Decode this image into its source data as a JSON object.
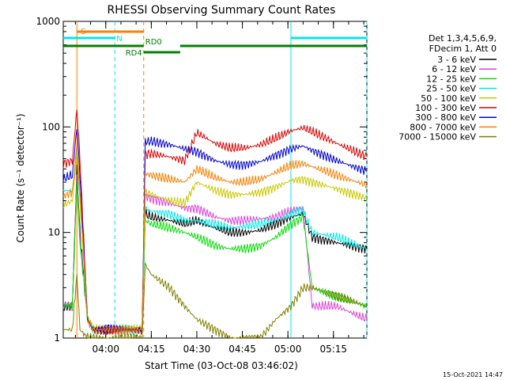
{
  "chart_data": {
    "type": "line",
    "title": "RHESSI Observing Summary Count Rates",
    "xlabel": "Start Time (03-Oct-08 03:46:02)",
    "ylabel": "Count Rate (s⁻¹ detector⁻¹)",
    "footer": "15-Oct-2021 14:47",
    "y_scale": "log",
    "ylim": [
      1,
      1000
    ],
    "xlim_minutes": [
      0,
      100
    ],
    "x_start": "03:46:02",
    "x_ticks": [
      {
        "label": "04:00",
        "minute": 14
      },
      {
        "label": "04:15",
        "minute": 29
      },
      {
        "label": "04:30",
        "minute": 44
      },
      {
        "label": "04:45",
        "minute": 59
      },
      {
        "label": "05:00",
        "minute": 74
      },
      {
        "label": "05:15",
        "minute": 89
      }
    ],
    "y_ticks": [
      {
        "label": "1",
        "value": 1
      },
      {
        "label": "10",
        "value": 10
      },
      {
        "label": "100",
        "value": 100
      },
      {
        "label": "1000",
        "value": 1000
      }
    ],
    "legend_header": [
      "Det 1,3,4,5,6,9,",
      "FDecim 1, Att 0"
    ],
    "legend_position": "right",
    "series": [
      {
        "name": "3 - 6 keV",
        "color": "#000000",
        "points": [
          [
            0,
            2
          ],
          [
            3,
            2
          ],
          [
            4.5,
            40
          ],
          [
            5.5,
            10
          ],
          [
            8,
            1.5
          ],
          [
            10,
            1.2
          ],
          [
            26,
            1.2
          ],
          [
            27,
            15
          ],
          [
            29,
            14
          ],
          [
            35,
            13
          ],
          [
            40,
            12
          ],
          [
            44,
            13
          ],
          [
            50,
            11
          ],
          [
            55,
            10
          ],
          [
            60,
            10
          ],
          [
            65,
            10.5
          ],
          [
            70,
            12
          ],
          [
            75,
            14
          ],
          [
            79,
            15
          ],
          [
            82,
            9
          ],
          [
            90,
            8
          ],
          [
            100,
            7
          ]
        ]
      },
      {
        "name": "6 - 12 keV",
        "color": "#e040e0",
        "points": [
          [
            0,
            2
          ],
          [
            3,
            2
          ],
          [
            4.5,
            35
          ],
          [
            5.5,
            9
          ],
          [
            8,
            1.5
          ],
          [
            10,
            1.2
          ],
          [
            26,
            1.2
          ],
          [
            27,
            22
          ],
          [
            29,
            21
          ],
          [
            35,
            19
          ],
          [
            40,
            17
          ],
          [
            44,
            17
          ],
          [
            50,
            14
          ],
          [
            55,
            13
          ],
          [
            60,
            13
          ],
          [
            65,
            13.5
          ],
          [
            70,
            14
          ],
          [
            75,
            16
          ],
          [
            79,
            17
          ],
          [
            82,
            2
          ],
          [
            90,
            2
          ],
          [
            100,
            1.5
          ]
        ]
      },
      {
        "name": "12 - 25 keV",
        "color": "#00e000",
        "points": [
          [
            0,
            2
          ],
          [
            3,
            2
          ],
          [
            4.5,
            30
          ],
          [
            5.5,
            8
          ],
          [
            8,
            1.5
          ],
          [
            10,
            1.2
          ],
          [
            26,
            1.2
          ],
          [
            27,
            13
          ],
          [
            29,
            12
          ],
          [
            35,
            11
          ],
          [
            40,
            10
          ],
          [
            44,
            9
          ],
          [
            50,
            7.5
          ],
          [
            55,
            7
          ],
          [
            60,
            7
          ],
          [
            65,
            7.5
          ],
          [
            70,
            9
          ],
          [
            75,
            12
          ],
          [
            79,
            14
          ],
          [
            82,
            3
          ],
          [
            90,
            2.5
          ],
          [
            100,
            2
          ]
        ]
      },
      {
        "name": "25 - 50 keV",
        "color": "#00e8e8",
        "points": [
          [
            0,
            25
          ],
          [
            3,
            25
          ],
          [
            4.5,
            60
          ],
          [
            5.5,
            20
          ],
          [
            8,
            1.5
          ],
          [
            10,
            1.2
          ],
          [
            26,
            1.2
          ],
          [
            27,
            17
          ],
          [
            29,
            16
          ],
          [
            35,
            15
          ],
          [
            40,
            13
          ],
          [
            44,
            13
          ],
          [
            50,
            12
          ],
          [
            55,
            11
          ],
          [
            60,
            11.5
          ],
          [
            65,
            12
          ],
          [
            70,
            13
          ],
          [
            75,
            15
          ],
          [
            79,
            16
          ],
          [
            82,
            10
          ],
          [
            90,
            9
          ],
          [
            100,
            7
          ]
        ]
      },
      {
        "name": "50 - 100 keV",
        "color": "#c8c800",
        "points": [
          [
            0,
            18
          ],
          [
            3,
            20
          ],
          [
            4.5,
            55
          ],
          [
            5.5,
            20
          ],
          [
            8,
            1.5
          ],
          [
            10,
            1.2
          ],
          [
            26,
            1.2
          ],
          [
            27,
            24
          ],
          [
            29,
            23
          ],
          [
            35,
            20
          ],
          [
            40,
            19
          ],
          [
            44,
            30
          ],
          [
            50,
            25
          ],
          [
            55,
            23
          ],
          [
            60,
            23
          ],
          [
            65,
            24
          ],
          [
            70,
            27
          ],
          [
            75,
            31
          ],
          [
            79,
            32
          ],
          [
            82,
            30
          ],
          [
            90,
            26
          ],
          [
            100,
            21
          ]
        ]
      },
      {
        "name": "100 - 300 keV",
        "color": "#e00000",
        "points": [
          [
            0,
            45
          ],
          [
            3,
            48
          ],
          [
            4.5,
            150
          ],
          [
            5.5,
            50
          ],
          [
            8,
            1.5
          ],
          [
            10,
            1.2
          ],
          [
            26,
            1.2
          ],
          [
            27,
            55
          ],
          [
            29,
            56
          ],
          [
            35,
            52
          ],
          [
            40,
            48
          ],
          [
            44,
            88
          ],
          [
            50,
            70
          ],
          [
            55,
            63
          ],
          [
            60,
            63
          ],
          [
            65,
            68
          ],
          [
            70,
            78
          ],
          [
            75,
            92
          ],
          [
            79,
            98
          ],
          [
            82,
            90
          ],
          [
            90,
            70
          ],
          [
            100,
            52
          ]
        ]
      },
      {
        "name": "300 - 800 keV",
        "color": "#0000dc",
        "points": [
          [
            0,
            32
          ],
          [
            3,
            35
          ],
          [
            4.5,
            100
          ],
          [
            5.5,
            35
          ],
          [
            8,
            1.5
          ],
          [
            10,
            1.2
          ],
          [
            26,
            1.2
          ],
          [
            27,
            72
          ],
          [
            29,
            73
          ],
          [
            35,
            68
          ],
          [
            40,
            62
          ],
          [
            44,
            58
          ],
          [
            50,
            48
          ],
          [
            55,
            44
          ],
          [
            60,
            44
          ],
          [
            65,
            47
          ],
          [
            70,
            54
          ],
          [
            75,
            62
          ],
          [
            79,
            66
          ],
          [
            82,
            60
          ],
          [
            90,
            48
          ],
          [
            100,
            38
          ]
        ]
      },
      {
        "name": "800 - 7000 keV",
        "color": "#ff7f00",
        "points": [
          [
            0,
            22
          ],
          [
            3,
            24
          ],
          [
            4.5,
            70
          ],
          [
            5.5,
            25
          ],
          [
            8,
            1.5
          ],
          [
            10,
            1.2
          ],
          [
            26,
            1.2
          ],
          [
            27,
            36
          ],
          [
            29,
            35
          ],
          [
            35,
            32
          ],
          [
            40,
            30
          ],
          [
            44,
            40
          ],
          [
            50,
            33
          ],
          [
            55,
            30
          ],
          [
            60,
            30
          ],
          [
            65,
            32
          ],
          [
            70,
            37
          ],
          [
            75,
            43
          ],
          [
            79,
            45
          ],
          [
            82,
            42
          ],
          [
            90,
            35
          ],
          [
            100,
            28
          ]
        ]
      },
      {
        "name": "7000 - 15000 keV",
        "color": "#808000",
        "points": [
          [
            0,
            1.2
          ],
          [
            3,
            1.2
          ],
          [
            4.5,
            4
          ],
          [
            5.5,
            1.2
          ],
          [
            8,
            1
          ],
          [
            10,
            1
          ],
          [
            26,
            1
          ],
          [
            27,
            5
          ],
          [
            29,
            4
          ],
          [
            35,
            3
          ],
          [
            40,
            2
          ],
          [
            44,
            1.5
          ],
          [
            50,
            1.2
          ],
          [
            55,
            1
          ],
          [
            60,
            1
          ],
          [
            65,
            1
          ],
          [
            70,
            1.5
          ],
          [
            75,
            2
          ],
          [
            79,
            3
          ],
          [
            82,
            3
          ],
          [
            90,
            2.5
          ],
          [
            100,
            2
          ]
        ]
      }
    ],
    "flag_bars": [
      {
        "label": "S",
        "color": "#ff7f00",
        "start": 4.5,
        "end": 26.5,
        "y": 40
      },
      {
        "label": "N",
        "color": "#00e8e8",
        "start": 0,
        "end": 17,
        "y": 48
      },
      {
        "label": "N",
        "color": "#00e8e8",
        "start": 75,
        "end": 100,
        "y": 48,
        "hide_label": true
      },
      {
        "label": "RD0",
        "color": "#008000",
        "start": 0,
        "end": 100,
        "y": 58,
        "gap": [
          26.5,
          38.5
        ]
      },
      {
        "label": "RD4",
        "color": "#008000",
        "start": 26.5,
        "end": 38.5,
        "y": 66
      }
    ],
    "vertical_lines": [
      {
        "minute": 4.5,
        "color": "#ff7f00",
        "dashed": false
      },
      {
        "minute": 17,
        "color": "#00e8e8",
        "dashed": true
      },
      {
        "minute": 26.5,
        "color": "#ff7f00",
        "dashed": true
      },
      {
        "minute": 75,
        "color": "#00e8e8",
        "dashed": false
      },
      {
        "minute": 100,
        "color": "#00e8e8",
        "dashed": true
      }
    ]
  }
}
